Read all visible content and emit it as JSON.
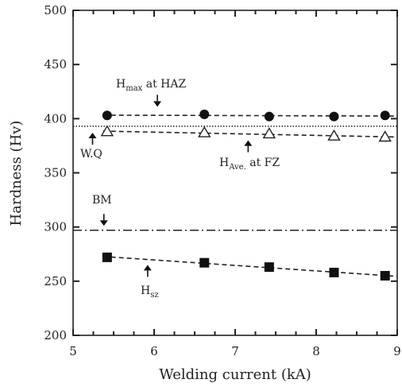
{
  "chart_data": {
    "type": "scatter",
    "xlabel": "Welding current (kA)",
    "ylabel": "Hardness (Hv)",
    "xlim": [
      5,
      9
    ],
    "ylim": [
      200,
      500
    ],
    "x_ticks": [
      "5",
      "6",
      "7",
      "8",
      "9"
    ],
    "y_ticks": [
      "200",
      "250",
      "300",
      "350",
      "400",
      "450",
      "500"
    ],
    "grid": false,
    "series": [
      {
        "marker": "filled-circle",
        "line": "dashed",
        "x": [
          5.42,
          6.62,
          7.42,
          8.22,
          8.85
        ],
        "y": [
          403,
          404,
          402,
          402,
          403
        ]
      },
      {
        "marker": "open-triangle",
        "line": "dashed",
        "x": [
          5.42,
          6.62,
          7.42,
          8.22,
          8.85
        ],
        "y": [
          388,
          387,
          386,
          384,
          383
        ]
      },
      {
        "marker": "filled-square",
        "line": "dashed",
        "x": [
          5.42,
          6.62,
          7.42,
          8.22,
          8.85
        ],
        "y": [
          272,
          267,
          263,
          258,
          255
        ]
      }
    ],
    "reference_lines": [
      {
        "y": 393,
        "style": "dotted"
      },
      {
        "y": 297,
        "style": "dash-dot"
      }
    ],
    "annotations": {
      "hmax": {
        "main": "H",
        "sub": "max",
        "rest": " at HAZ"
      },
      "wq": {
        "text": "W.Q"
      },
      "have": {
        "main": "H",
        "sub": "Ave.",
        "rest": " at FZ"
      },
      "bm": {
        "text": "BM"
      },
      "hsz": {
        "main": "H",
        "sub": "sz",
        "rest": ""
      }
    }
  }
}
